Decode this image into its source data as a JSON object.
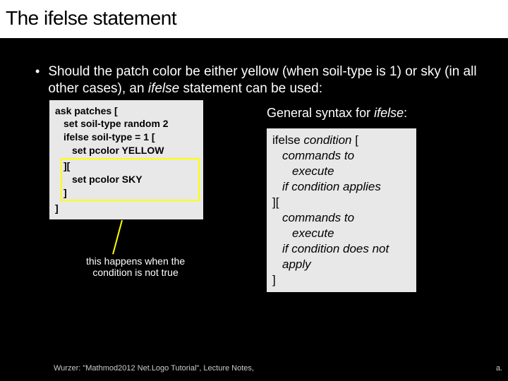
{
  "title": "The ifelse statement",
  "bullet": {
    "text_before": "Should the patch color be either yellow (when soil-type is 1) or sky (in all other cases), an ",
    "ifelse_word": "ifelse",
    "text_after": " statement can be used:"
  },
  "code": {
    "l1": "ask patches [",
    "l2": "set soil-type random 2",
    "l3": "ifelse soil-type = 1 [",
    "l4": "set pcolor YELLOW",
    "l5": "][",
    "l6": "set pcolor SKY",
    "l7": "]",
    "l8": "]"
  },
  "callout": {
    "line1": "this happens when the",
    "line2": "condition is not true"
  },
  "syntax": {
    "heading_before": "General syntax for ",
    "heading_word": "ifelse",
    "heading_after": ":",
    "r1a": "ifelse ",
    "r1b": "condition",
    "r1c": " [",
    "r2": "commands to",
    "r3": "execute",
    "r4": "if condition applies",
    "r5": "][",
    "r6": "commands to",
    "r7": "execute",
    "r8": "if condition does not",
    "r9": "apply",
    "r10": "]"
  },
  "citation": "Wurzer: \"Mathmod2012 Net.Logo Tutorial\", Lecture Notes,",
  "cite_tail": "a."
}
